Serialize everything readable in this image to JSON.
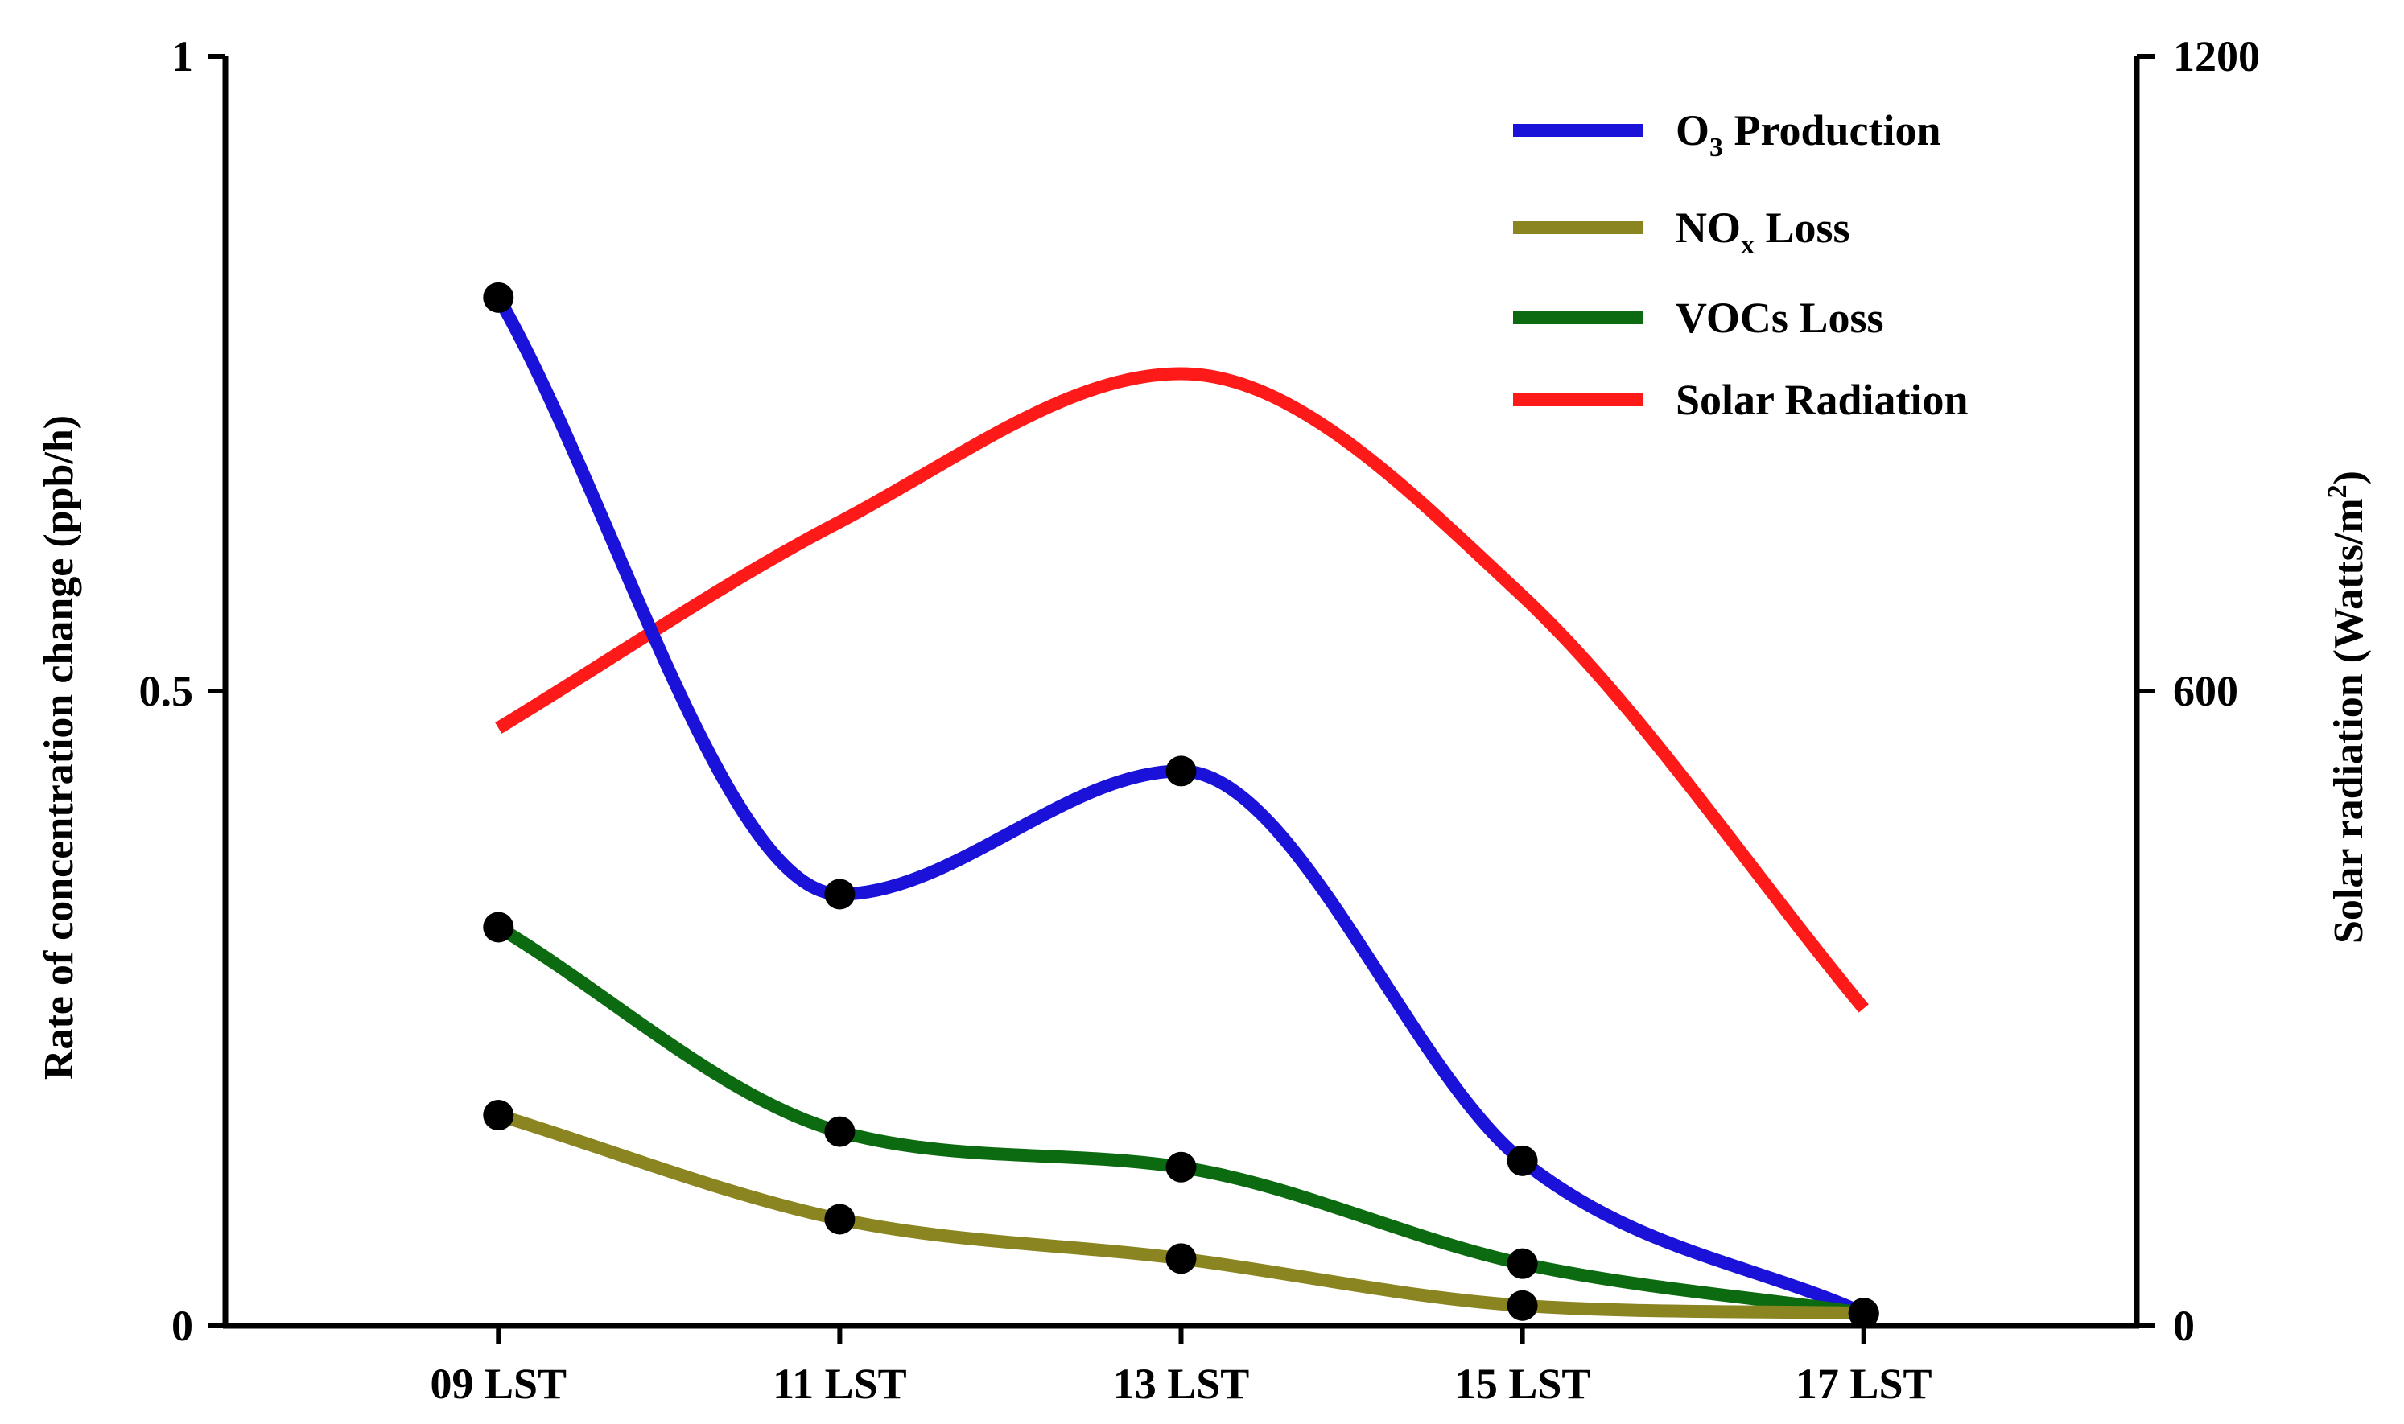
{
  "chart_data": {
    "type": "line",
    "categories": [
      "09 LST",
      "11 LST",
      "13 LST",
      "15 LST",
      "17 LST"
    ],
    "x_range": [
      7.4,
      18.6
    ],
    "y_left": {
      "label": "Rate of concentration change (ppb/h)",
      "ylim": [
        0,
        1
      ],
      "ticks": [
        0,
        0.5,
        1
      ],
      "tick_labels": [
        "0",
        "0.5",
        "1"
      ]
    },
    "y_right": {
      "label": "Solar radiation (Watts/m²)",
      "label_main": "Solar radiation (Watts/m",
      "label_sup": "2",
      "label_end": ")",
      "ylim": [
        0,
        1200
      ],
      "ticks": [
        0,
        600,
        1200
      ],
      "tick_labels": [
        "0",
        "600",
        "1200"
      ]
    },
    "series": [
      {
        "name": "O3 Production",
        "label_main": "O",
        "label_sub": "3",
        "label_rest": " Production",
        "color": "#1a12d8",
        "axis": "left",
        "markers": true,
        "x": [
          9,
          11,
          13,
          15,
          17
        ],
        "values": [
          0.81,
          0.34,
          0.437,
          0.13,
          0.01
        ]
      },
      {
        "name": "NOx Loss",
        "label_main": "NO",
        "label_sub": "x",
        "label_rest": " Loss",
        "color": "#8a8520",
        "axis": "left",
        "markers": true,
        "x": [
          9,
          11,
          13,
          15,
          17
        ],
        "values": [
          0.166,
          0.084,
          0.053,
          0.016,
          0.01
        ]
      },
      {
        "name": "VOCs Loss",
        "label_main": "VOCs Loss",
        "label_sub": "",
        "label_rest": "",
        "color": "#0c6b10",
        "axis": "left",
        "markers": true,
        "x": [
          9,
          11,
          13,
          15,
          17
        ],
        "values": [
          0.314,
          0.153,
          0.125,
          0.049,
          0.01
        ]
      },
      {
        "name": "Solar Radiation",
        "label_main": "Solar Radiation",
        "label_sub": "",
        "label_rest": "",
        "color": "#ff1a1a",
        "axis": "right",
        "markers": false,
        "x": [
          9,
          11,
          13,
          15,
          17
        ],
        "values": [
          565,
          760,
          900,
          690,
          300
        ]
      }
    ],
    "legend_position": "top-right",
    "grid": false
  }
}
